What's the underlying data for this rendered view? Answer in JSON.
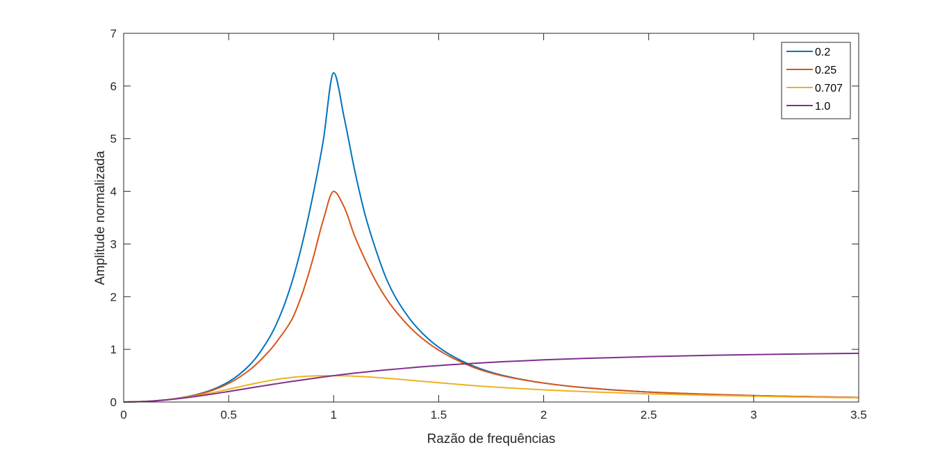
{
  "chart_data": {
    "type": "line",
    "title": "",
    "xlabel": "Razão de frequências",
    "ylabel": "Amplitude normalizada",
    "xlim": [
      0,
      3.5
    ],
    "ylim": [
      0,
      7
    ],
    "xticks": [
      0,
      0.5,
      1,
      1.5,
      2,
      2.5,
      3,
      3.5
    ],
    "xtick_labels": [
      "0",
      "0.5",
      "1",
      "1.5",
      "2",
      "2.5",
      "3",
      "3.5"
    ],
    "yticks": [
      0,
      1,
      2,
      3,
      4,
      5,
      6,
      7
    ],
    "ytick_labels": [
      "0",
      "1",
      "2",
      "3",
      "4",
      "5",
      "6",
      "7"
    ],
    "grid": false,
    "legend_position": "top-right",
    "x": [
      0,
      0.1,
      0.2,
      0.3,
      0.4,
      0.5,
      0.6,
      0.7,
      0.75,
      0.8,
      0.85,
      0.9,
      0.95,
      1.0,
      1.05,
      1.1,
      1.15,
      1.2,
      1.25,
      1.3,
      1.4,
      1.5,
      1.6,
      1.7,
      1.8,
      2.0,
      2.2,
      2.5,
      2.8,
      3.0,
      3.2,
      3.5
    ],
    "series": [
      {
        "name": "0.2",
        "color": "#0072BD",
        "values": [
          0,
          0.01,
          0.042,
          0.1,
          0.203,
          0.384,
          0.702,
          1.264,
          1.69,
          2.26,
          3.0,
          3.9,
          4.95,
          6.25,
          5.4,
          4.4,
          3.55,
          2.9,
          2.35,
          1.95,
          1.4,
          1.04,
          0.8,
          0.63,
          0.51,
          0.36,
          0.27,
          0.19,
          0.145,
          0.122,
          0.105,
          0.086
        ]
      },
      {
        "name": "0.25",
        "color": "#D95319",
        "values": [
          0,
          0.01,
          0.041,
          0.098,
          0.193,
          0.353,
          0.61,
          1.0,
          1.26,
          1.56,
          2.05,
          2.7,
          3.45,
          4.0,
          3.7,
          3.15,
          2.7,
          2.3,
          1.97,
          1.7,
          1.28,
          0.985,
          0.77,
          0.61,
          0.5,
          0.36,
          0.27,
          0.19,
          0.145,
          0.122,
          0.105,
          0.086
        ]
      },
      {
        "name": "0.707",
        "color": "#EDB120",
        "values": [
          0,
          0.01,
          0.04,
          0.09,
          0.159,
          0.243,
          0.331,
          0.411,
          0.443,
          0.467,
          0.484,
          0.494,
          0.499,
          0.5,
          0.497,
          0.49,
          0.48,
          0.467,
          0.452,
          0.436,
          0.401,
          0.366,
          0.333,
          0.302,
          0.275,
          0.231,
          0.196,
          0.155,
          0.126,
          0.11,
          0.096,
          0.08
        ]
      },
      {
        "name": "1.0",
        "color": "#7E2F8E",
        "values": [
          0,
          0.01,
          0.038,
          0.083,
          0.138,
          0.2,
          0.265,
          0.329,
          0.36,
          0.39,
          0.419,
          0.447,
          0.474,
          0.5,
          0.525,
          0.549,
          0.569,
          0.59,
          0.609,
          0.627,
          0.662,
          0.692,
          0.719,
          0.742,
          0.764,
          0.8,
          0.829,
          0.862,
          0.887,
          0.9,
          0.911,
          0.925
        ]
      }
    ]
  }
}
